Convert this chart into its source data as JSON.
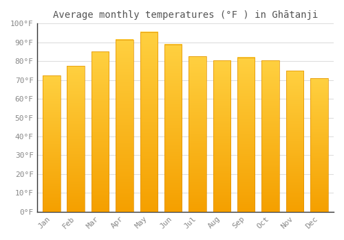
{
  "title": "Average monthly temperatures (°F ) in Ghātanji",
  "months": [
    "Jan",
    "Feb",
    "Mar",
    "Apr",
    "May",
    "Jun",
    "Jul",
    "Aug",
    "Sep",
    "Oct",
    "Nov",
    "Dec"
  ],
  "values": [
    72.5,
    77.5,
    85.0,
    91.5,
    95.5,
    89.0,
    82.5,
    80.5,
    82.0,
    80.5,
    75.0,
    71.0
  ],
  "bar_color_top": "#FFC200",
  "bar_color_bottom": "#F5A800",
  "bar_edge_color": "#E09000",
  "background_color": "#FFFFFF",
  "grid_color": "#DDDDDD",
  "ylim": [
    0,
    100
  ],
  "ytick_step": 10,
  "title_fontsize": 10,
  "tick_fontsize": 8,
  "figsize": [
    5.0,
    3.5
  ],
  "dpi": 100,
  "tick_color": "#888888",
  "title_color": "#555555",
  "spine_color": "#333333"
}
